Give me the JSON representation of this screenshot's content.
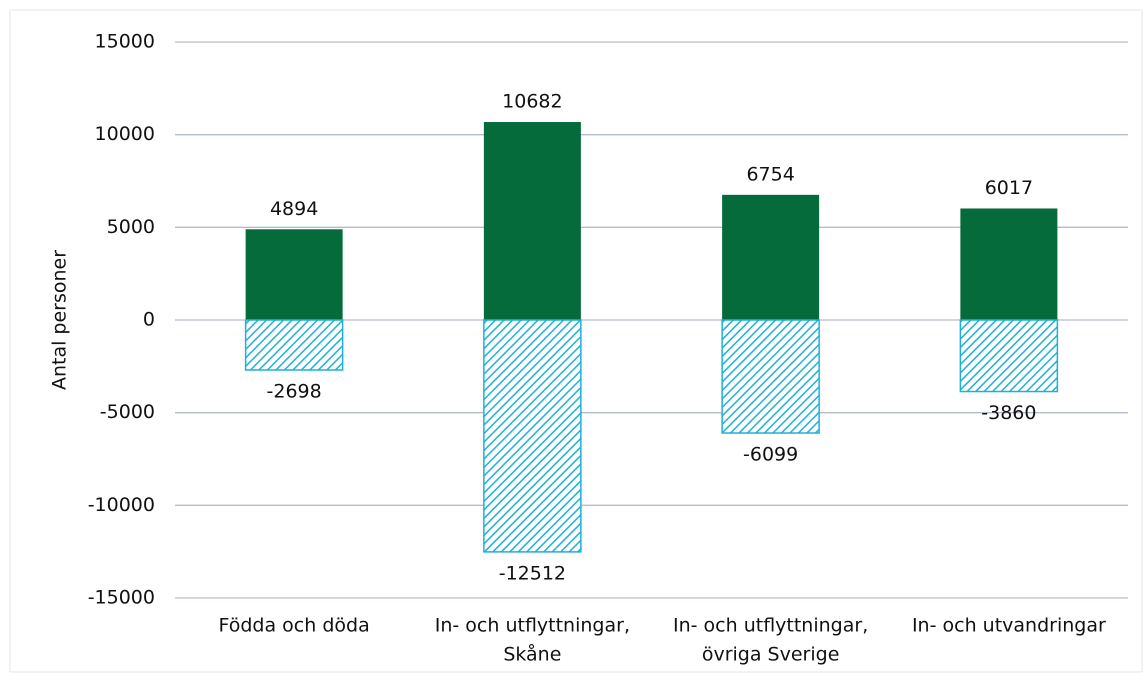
{
  "chart_data": {
    "type": "bar",
    "categories": [
      [
        "Födda och döda"
      ],
      [
        "In- och utflyttningar,",
        "Skåne"
      ],
      [
        "In- och utflyttningar,",
        "övriga Sverige"
      ],
      [
        "In- och utvandringar"
      ]
    ],
    "series": [
      {
        "color": "#056b3a",
        "values": [
          4894,
          10682,
          6754,
          6017
        ]
      },
      {
        "color": "#1fb0d8",
        "hatch": true,
        "values": [
          -2698,
          -12512,
          -6099,
          -3860
        ]
      }
    ],
    "y_label": "Antal personer",
    "ylim": [
      -15000,
      15000
    ],
    "yticks": [
      -15000,
      -10000,
      -5000,
      0,
      5000,
      10000,
      15000
    ],
    "grid": true
  }
}
